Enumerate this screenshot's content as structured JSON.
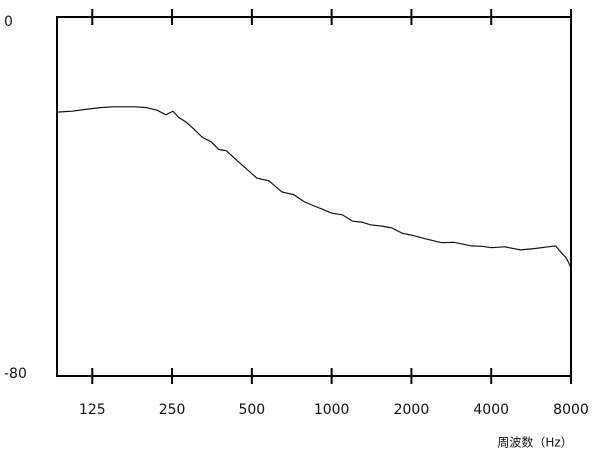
{
  "chart_data": {
    "type": "line",
    "x_label": "周波数（Hz）",
    "xscale": "log",
    "grid": false,
    "color": "#111111",
    "x": [
      92,
      105,
      118,
      134,
      150,
      165,
      182,
      200,
      220,
      237,
      252,
      265,
      282,
      300,
      325,
      351,
      375,
      400,
      436,
      470,
      522,
      580,
      649,
      720,
      790,
      842,
      920,
      1000,
      1100,
      1200,
      1298,
      1400,
      1550,
      1685,
      1850,
      2000,
      2250,
      2596,
      2900,
      3370,
      3700,
      4000,
      4500,
      5147,
      5800,
      6563,
      7000,
      7300,
      7700,
      8000
    ],
    "values": [
      -21.2,
      -21.0,
      -20.6,
      -20.2,
      -20.0,
      -20.0,
      -20.0,
      -20.2,
      -20.8,
      -21.8,
      -21.0,
      -22.4,
      -23.4,
      -24.8,
      -26.8,
      -27.8,
      -29.5,
      -29.8,
      -31.8,
      -33.5,
      -35.9,
      -36.5,
      -39.0,
      -39.6,
      -41.2,
      -41.9,
      -42.8,
      -43.7,
      -44.1,
      -45.5,
      -45.7,
      -46.3,
      -46.6,
      -47.0,
      -48.2,
      -48.6,
      -49.4,
      -50.3,
      -50.2,
      -51.0,
      -51.1,
      -51.4,
      -51.2,
      -51.9,
      -51.6,
      -51.2,
      -51.0,
      -52.3,
      -53.8,
      -55.9
    ],
    "xlim": [
      92,
      8000
    ],
    "ylim": [
      -80,
      0
    ],
    "xticks": [
      125,
      250,
      500,
      1000,
      2000,
      4000,
      8000
    ],
    "yticks": [
      0,
      -80
    ]
  }
}
